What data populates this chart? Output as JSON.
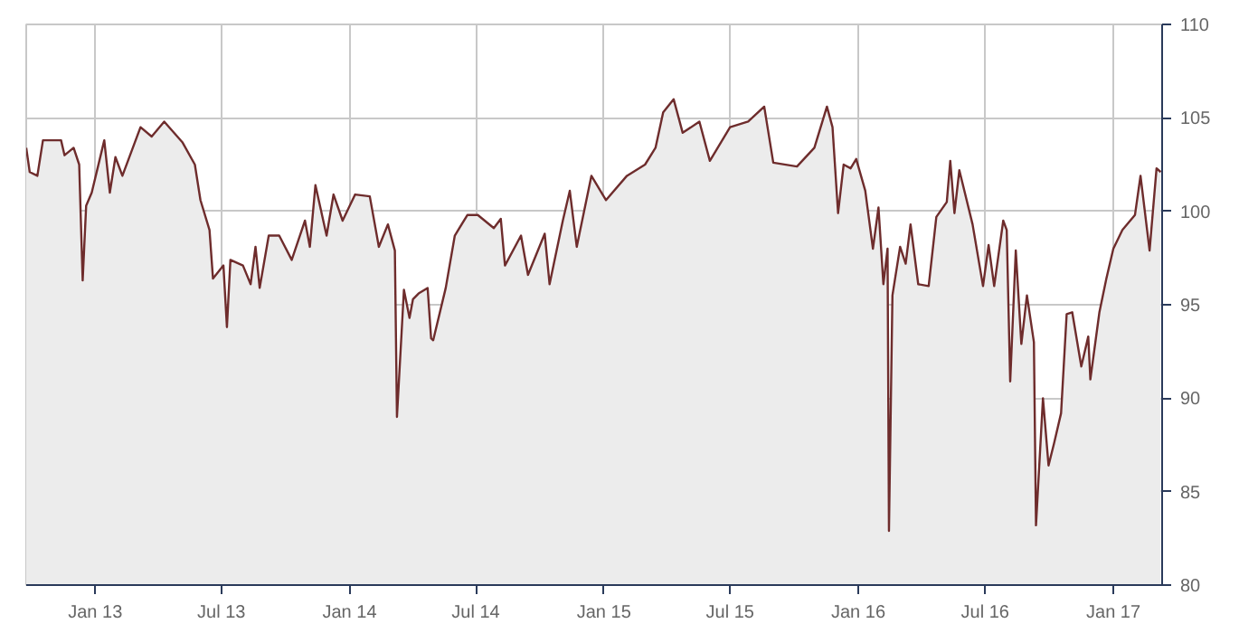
{
  "chart_data": {
    "type": "area",
    "grid": true,
    "color": "#6e2c2c",
    "xlim": [
      "2012-09-24",
      "2017-03-12"
    ],
    "ylim": [
      80,
      110
    ],
    "yticks": [
      80,
      85,
      90,
      95,
      100,
      105,
      110
    ],
    "xticks": [
      {
        "value": "2013-01-01",
        "label": "Jan 13"
      },
      {
        "value": "2013-07-01",
        "label": "Jul 13"
      },
      {
        "value": "2014-01-01",
        "label": "Jan 14"
      },
      {
        "value": "2014-07-01",
        "label": "Jul 14"
      },
      {
        "value": "2015-01-01",
        "label": "Jan 15"
      },
      {
        "value": "2015-07-01",
        "label": "Jul 15"
      },
      {
        "value": "2016-01-01",
        "label": "Jan 16"
      },
      {
        "value": "2016-07-01",
        "label": "Jul 16"
      },
      {
        "value": "2017-01-01",
        "label": "Jan 17"
      }
    ],
    "x": [
      "2012-09-24",
      "2012-09-29",
      "2012-10-10",
      "2012-10-18",
      "2012-11-13",
      "2012-11-18",
      "2012-12-01",
      "2012-12-09",
      "2012-12-14",
      "2012-12-19",
      "2012-12-27",
      "2013-01-14",
      "2013-01-22",
      "2013-01-30",
      "2013-02-09",
      "2013-03-07",
      "2013-03-23",
      "2013-04-10",
      "2013-05-06",
      "2013-05-24",
      "2013-06-01",
      "2013-06-14",
      "2013-06-19",
      "2013-07-04",
      "2013-07-09",
      "2013-07-14",
      "2013-08-01",
      "2013-08-12",
      "2013-08-19",
      "2013-08-25",
      "2013-09-07",
      "2013-09-22",
      "2013-10-10",
      "2013-10-29",
      "2013-11-05",
      "2013-11-13",
      "2013-11-29",
      "2013-12-09",
      "2013-12-22",
      "2014-01-09",
      "2014-01-30",
      "2014-02-12",
      "2014-02-25",
      "2014-03-07",
      "2014-03-10",
      "2014-03-20",
      "2014-03-28",
      "2014-04-02",
      "2014-04-10",
      "2014-04-23",
      "2014-04-28",
      "2014-05-01",
      "2014-05-19",
      "2014-06-01",
      "2014-06-19",
      "2014-07-04",
      "2014-07-27",
      "2014-08-06",
      "2014-08-12",
      "2014-09-04",
      "2014-09-14",
      "2014-10-08",
      "2014-10-15",
      "2014-11-03",
      "2014-11-13",
      "2014-11-23",
      "2014-12-14",
      "2015-01-04",
      "2015-02-03",
      "2015-03-01",
      "2015-03-16",
      "2015-03-27",
      "2015-04-11",
      "2015-04-24",
      "2015-05-18",
      "2015-06-02",
      "2015-07-01",
      "2015-07-27",
      "2015-08-19",
      "2015-09-01",
      "2015-10-05",
      "2015-10-30",
      "2015-11-17",
      "2015-11-25",
      "2015-12-03",
      "2015-12-11",
      "2015-12-21",
      "2015-12-29",
      "2016-01-11",
      "2016-01-22",
      "2016-01-30",
      "2016-02-06",
      "2016-02-12",
      "2016-02-14",
      "2016-02-19",
      "2016-03-01",
      "2016-03-09",
      "2016-03-16",
      "2016-03-27",
      "2016-04-11",
      "2016-04-22",
      "2016-05-07",
      "2016-05-12",
      "2016-05-18",
      "2016-05-25",
      "2016-06-13",
      "2016-06-28",
      "2016-07-06",
      "2016-07-14",
      "2016-07-27",
      "2016-08-01",
      "2016-08-06",
      "2016-08-14",
      "2016-08-22",
      "2016-08-30",
      "2016-09-09",
      "2016-09-12",
      "2016-09-22",
      "2016-09-30",
      "2016-10-08",
      "2016-10-18",
      "2016-10-26",
      "2016-11-03",
      "2016-11-16",
      "2016-11-26",
      "2016-11-29",
      "2016-12-12",
      "2016-12-22",
      "2017-01-01",
      "2017-01-14",
      "2017-02-01",
      "2017-02-09",
      "2017-02-22",
      "2017-03-04",
      "2017-03-10"
    ],
    "values": [
      103.4,
      102.1,
      101.9,
      103.8,
      103.8,
      103.0,
      103.4,
      102.5,
      96.3,
      100.3,
      101.0,
      103.8,
      101.0,
      102.9,
      101.9,
      104.5,
      104.0,
      104.8,
      103.7,
      102.5,
      100.6,
      99.0,
      96.4,
      97.1,
      93.8,
      97.4,
      97.1,
      96.1,
      98.1,
      95.9,
      98.7,
      98.7,
      97.4,
      99.5,
      98.1,
      101.4,
      98.7,
      100.9,
      99.5,
      100.9,
      100.8,
      98.1,
      99.3,
      97.9,
      89.0,
      95.8,
      94.3,
      95.3,
      95.6,
      95.9,
      93.2,
      93.1,
      95.9,
      98.7,
      99.8,
      99.8,
      99.1,
      99.6,
      97.1,
      98.7,
      96.6,
      98.8,
      96.1,
      99.5,
      101.1,
      98.1,
      101.9,
      100.6,
      101.9,
      102.5,
      103.4,
      105.3,
      106.0,
      104.2,
      104.8,
      102.7,
      104.5,
      104.8,
      105.6,
      102.6,
      102.4,
      103.4,
      105.6,
      104.5,
      99.9,
      102.5,
      102.3,
      102.8,
      101.1,
      98.0,
      100.2,
      96.1,
      98.0,
      82.9,
      95.5,
      98.1,
      97.2,
      99.3,
      96.1,
      96.0,
      99.7,
      100.5,
      102.7,
      99.9,
      102.2,
      99.3,
      96.0,
      98.2,
      96.0,
      99.5,
      99.0,
      90.9,
      97.9,
      92.9,
      95.5,
      93.0,
      83.2,
      90.0,
      86.4,
      87.6,
      89.2,
      94.5,
      94.6,
      91.7,
      93.3,
      91.0,
      94.6,
      96.4,
      98.0,
      99.0,
      99.8,
      101.9,
      97.9,
      102.3,
      102.1
    ]
  }
}
